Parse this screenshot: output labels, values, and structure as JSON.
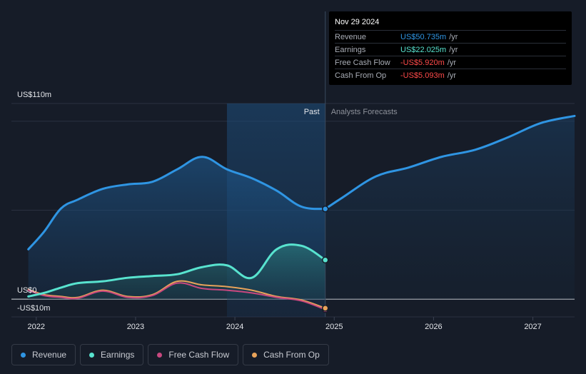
{
  "tooltip": {
    "date": "Nov 29 2024",
    "rows": [
      {
        "label": "Revenue",
        "value": "US$50.735m",
        "unit": "/yr",
        "color": "#2f95e3"
      },
      {
        "label": "Earnings",
        "value": "US$22.025m",
        "unit": "/yr",
        "color": "#58e3cf"
      },
      {
        "label": "Free Cash Flow",
        "value": "-US$5.920m",
        "unit": "/yr",
        "color": "#ff4a4a"
      },
      {
        "label": "Cash From Op",
        "value": "-US$5.093m",
        "unit": "/yr",
        "color": "#ff4a4a"
      }
    ]
  },
  "legend": [
    {
      "label": "Revenue",
      "color": "#2f95e3"
    },
    {
      "label": "Earnings",
      "color": "#58e3cf"
    },
    {
      "label": "Free Cash Flow",
      "color": "#c8487f"
    },
    {
      "label": "Cash From Op",
      "color": "#e8a35a"
    }
  ],
  "chart_data": {
    "type": "line",
    "y_tick_labels": [
      "US$110m",
      "US$0",
      "-US$10m"
    ],
    "ylim": [
      -10,
      110
    ],
    "xlim": [
      2021.75,
      2027.42
    ],
    "x_tick_labels": [
      "2022",
      "2023",
      "2024",
      "2025",
      "2026",
      "2027"
    ],
    "x_ticks": [
      2022,
      2023,
      2024,
      2025,
      2026,
      2027
    ],
    "past_label": "Past",
    "forecast_label": "Analysts Forecasts",
    "past_start": 2023.92,
    "divider": 2024.91,
    "series": [
      {
        "name": "Revenue",
        "color": "#2f95e3",
        "x": [
          2021.92,
          2022.08,
          2022.25,
          2022.42,
          2022.67,
          2022.92,
          2023.17,
          2023.42,
          2023.67,
          2023.92,
          2024.17,
          2024.42,
          2024.67,
          2024.91
        ],
        "y": [
          28,
          38,
          51,
          56,
          62,
          64.5,
          66,
          73,
          80,
          73,
          68,
          61,
          52,
          50.7
        ]
      },
      {
        "name": "Revenue forecast",
        "color": "#2f95e3",
        "x": [
          2024.91,
          2025.08,
          2025.42,
          2025.75,
          2026.08,
          2026.42,
          2026.75,
          2027.08,
          2027.42
        ],
        "y": [
          50.7,
          57,
          69,
          74,
          80,
          84,
          91,
          99,
          103
        ]
      },
      {
        "name": "Earnings",
        "color": "#58e3cf",
        "x": [
          2021.92,
          2022.08,
          2022.25,
          2022.42,
          2022.67,
          2022.92,
          2023.17,
          2023.42,
          2023.67,
          2023.92,
          2024.17,
          2024.42,
          2024.67,
          2024.91
        ],
        "y": [
          1.5,
          3.5,
          6.5,
          9,
          10,
          12,
          13,
          14,
          18,
          19,
          12,
          28,
          30,
          22
        ]
      },
      {
        "name": "Free Cash Flow",
        "color": "#c8487f",
        "x": [
          2021.92,
          2022.08,
          2022.25,
          2022.42,
          2022.67,
          2022.92,
          2023.17,
          2023.42,
          2023.67,
          2023.92,
          2024.17,
          2024.42,
          2024.67,
          2024.91
        ],
        "y": [
          5,
          2,
          1,
          0.5,
          4.5,
          1,
          2,
          9,
          6,
          5,
          3.5,
          1,
          -1,
          -5.9
        ]
      },
      {
        "name": "Cash From Op",
        "color": "#e8a35a",
        "x": [
          2021.92,
          2022.08,
          2022.25,
          2022.42,
          2022.67,
          2022.92,
          2023.17,
          2023.42,
          2023.67,
          2023.92,
          2024.17,
          2024.42,
          2024.67,
          2024.91
        ],
        "y": [
          5.5,
          2.5,
          1.5,
          1,
          5,
          1.5,
          2.5,
          10,
          8,
          7,
          5,
          1.5,
          -0.5,
          -5.1
        ]
      }
    ]
  }
}
